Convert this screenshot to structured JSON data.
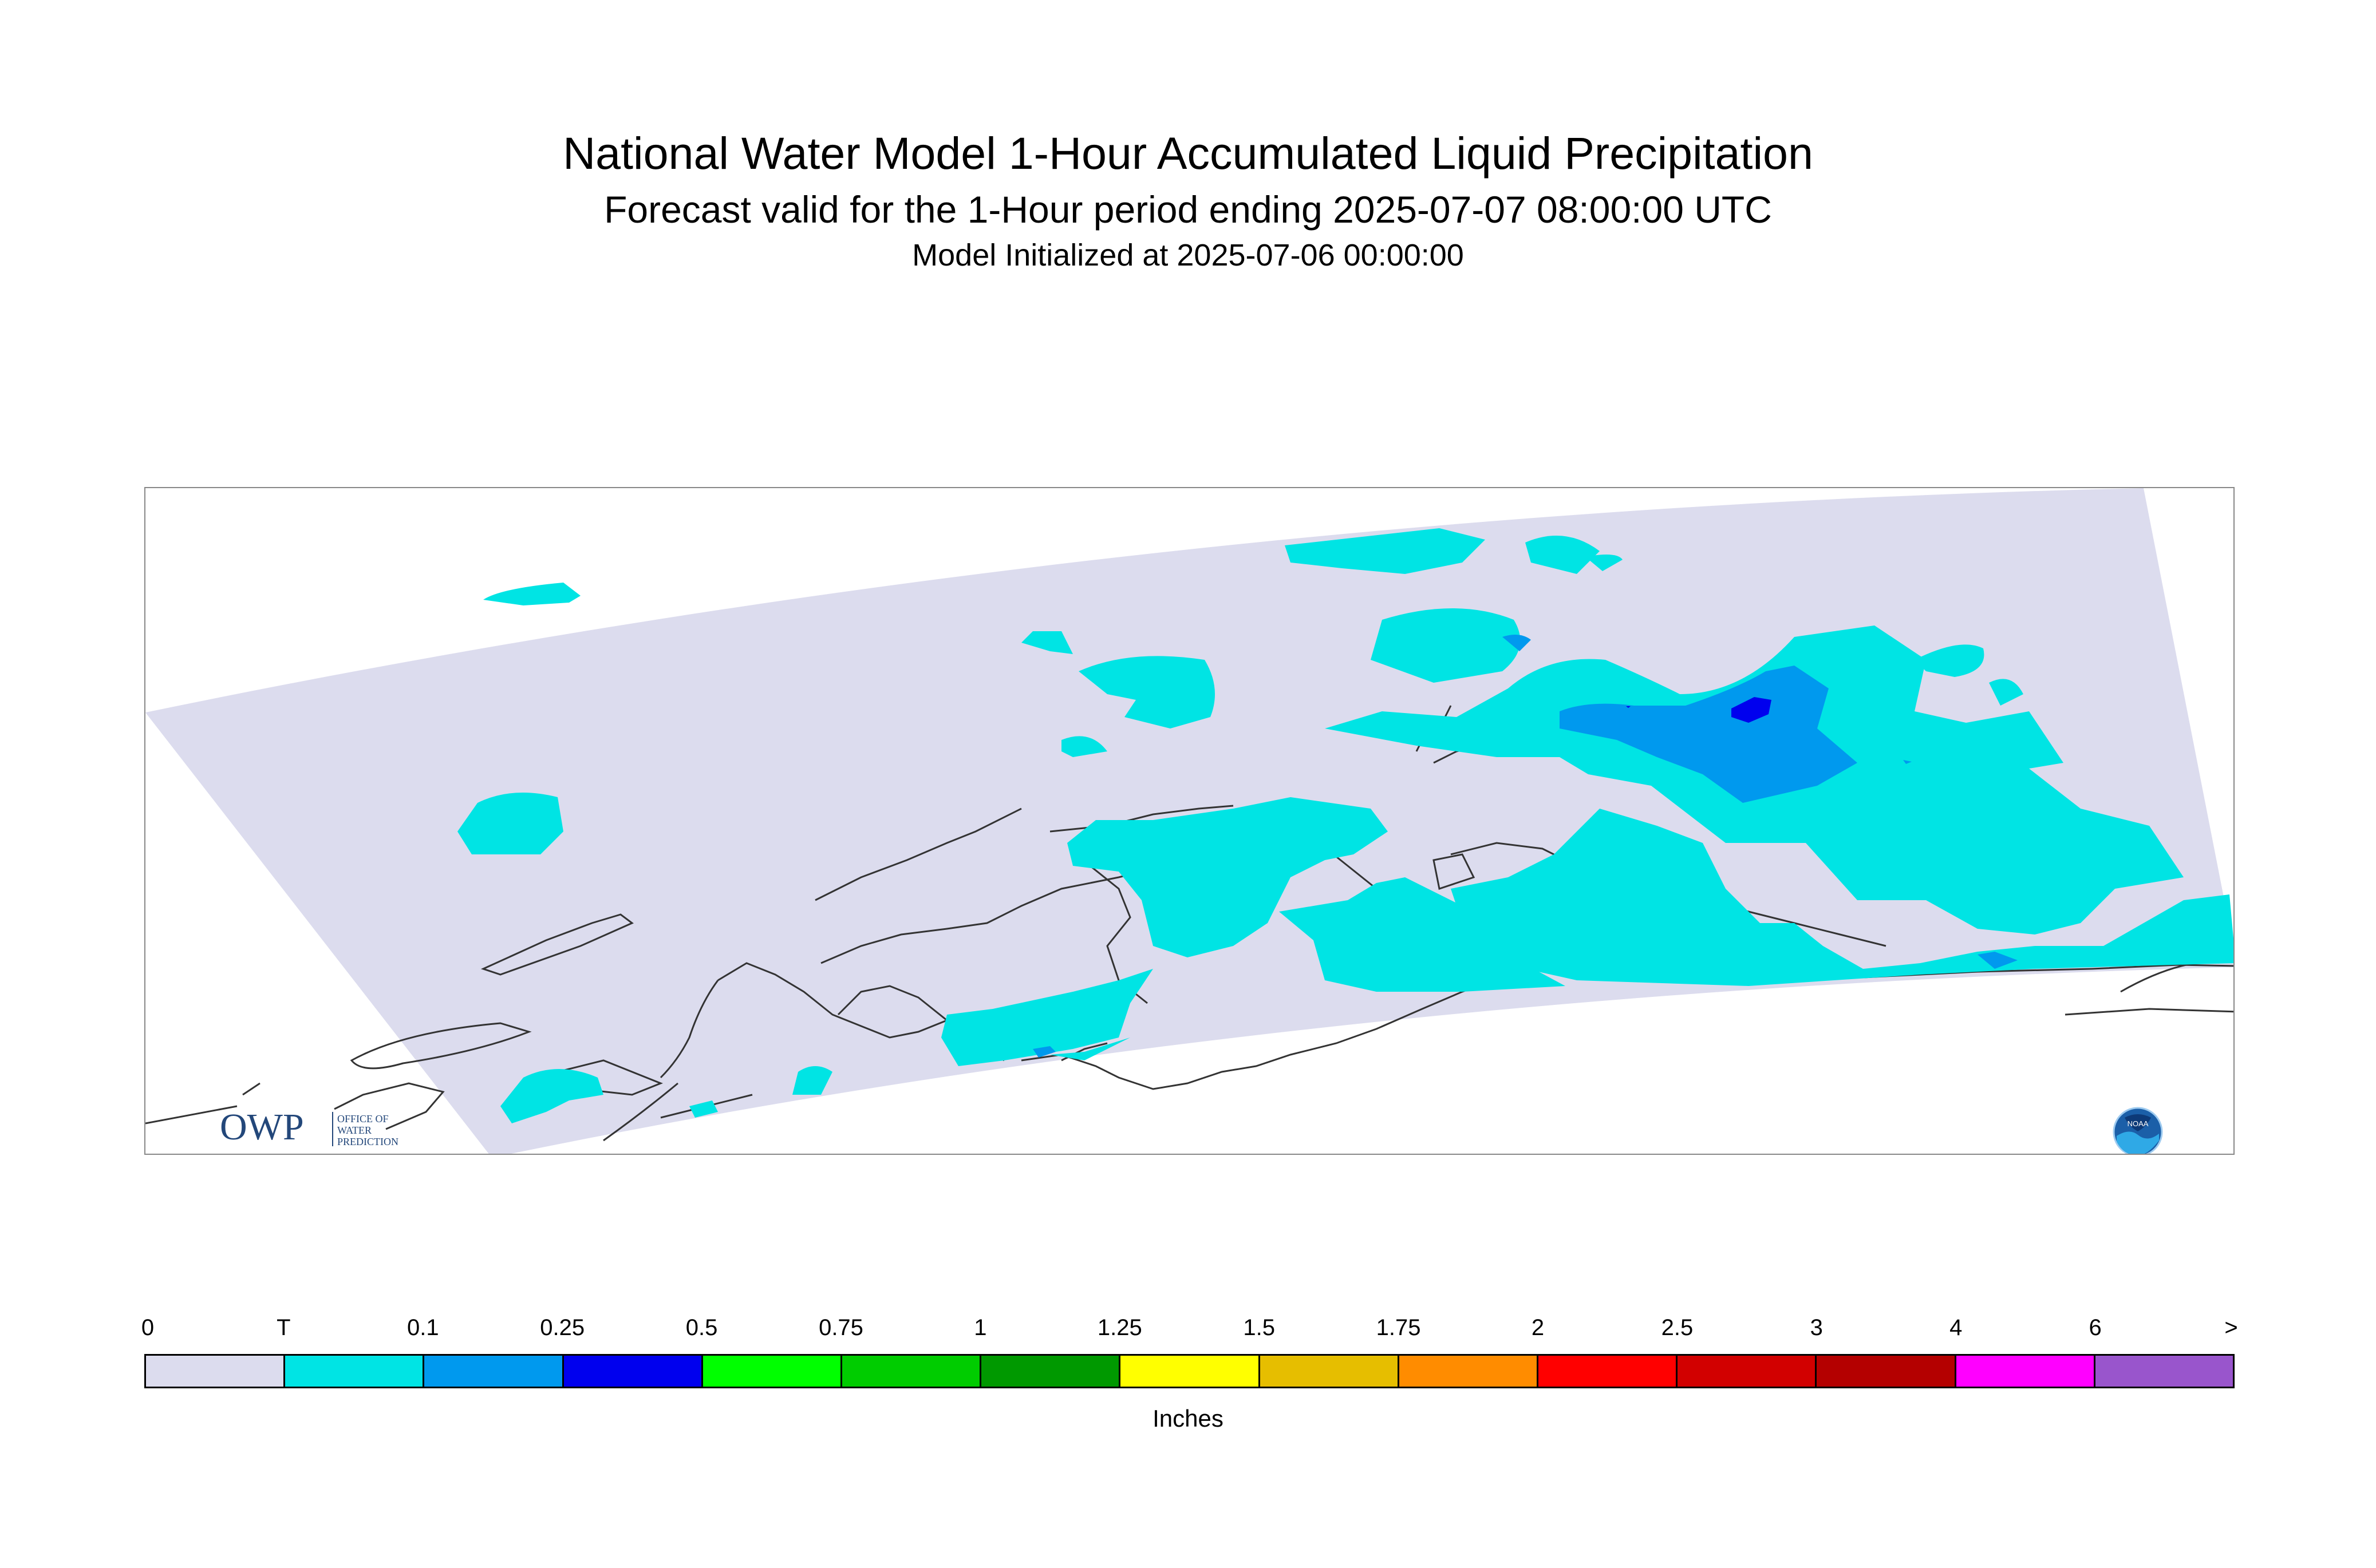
{
  "title": "National Water Model 1-Hour Accumulated Liquid Precipitation",
  "subtitle": "Forecast valid for the 1-Hour period ending 2025-07-07 08:00:00 UTC",
  "init": "Model Initialized at 2025-07-06 00:00:00",
  "owp_logo": {
    "mark": "OWP",
    "line1": "OFFICE OF",
    "line2": "WATER",
    "line3": "PREDICTION"
  },
  "noaa_logo": {
    "text": "NOAA"
  },
  "legend": {
    "units": "Inches",
    "ticks": [
      "0",
      "T",
      "0.1",
      "0.25",
      "0.5",
      "0.75",
      "1",
      "1.25",
      "1.5",
      "1.75",
      "2",
      "2.5",
      "3",
      "4",
      "6",
      ">"
    ],
    "colors": [
      "#dcdcee",
      "#00e4e4",
      "#0099ee",
      "#0000ee",
      "#00ff00",
      "#00cc00",
      "#009900",
      "#ffff00",
      "#e6be00",
      "#ff8c00",
      "#ff0000",
      "#d20000",
      "#b40000",
      "#ff00ff",
      "#9955cc"
    ]
  },
  "map": {
    "domain_fill": "#dcdcee",
    "precip_colors": {
      "trace": "#00e4e4",
      "p01": "#0099ee",
      "p025": "#0000ee"
    }
  }
}
